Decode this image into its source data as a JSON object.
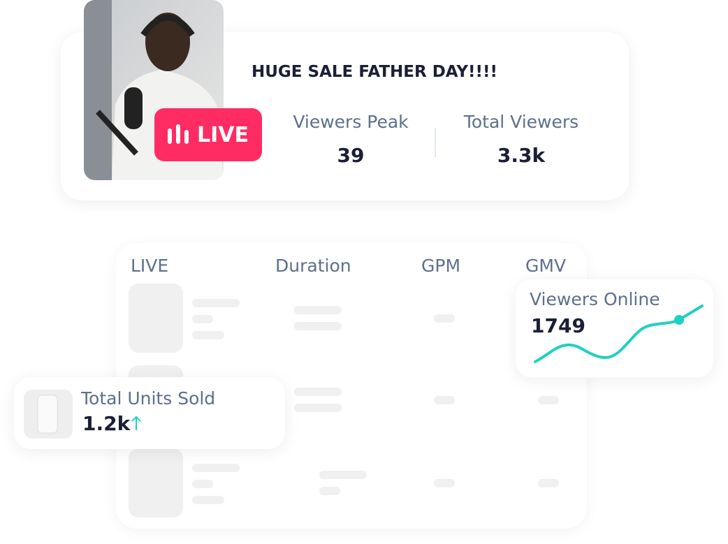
{
  "stream_card": {
    "title": "HUGE SALE FATHER DAY!!!!",
    "badge": "LIVE",
    "stats": [
      {
        "label": "Viewers Peak",
        "value": "39"
      },
      {
        "label": "Total Viewers",
        "value": "3.3k"
      }
    ]
  },
  "table": {
    "headers": [
      "LIVE",
      "Duration",
      "GPM",
      "GMV"
    ]
  },
  "viewers_online": {
    "label": "Viewers Online",
    "value": "1749"
  },
  "units_sold": {
    "label": "Total Units Sold",
    "value": "1.2k"
  }
}
